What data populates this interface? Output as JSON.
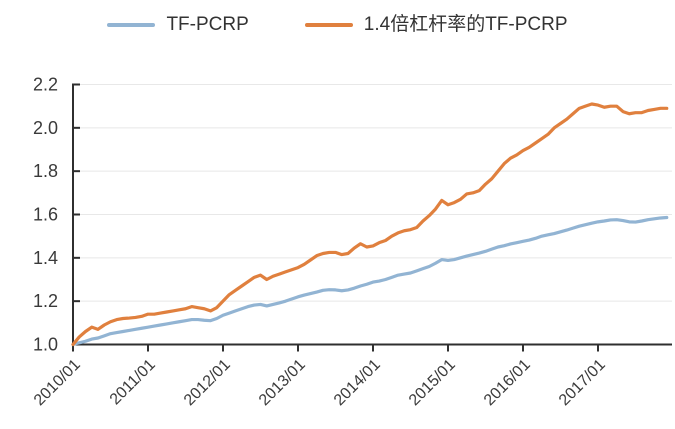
{
  "chart_data": {
    "type": "line",
    "title": "",
    "legend_position": "top-center",
    "grid": "horizontal",
    "ylim": [
      1.0,
      2.2
    ],
    "y_tick_labels": [
      "1.0",
      "1.2",
      "1.4",
      "1.6",
      "1.8",
      "2.0",
      "2.2"
    ],
    "x_tick_labels": [
      "2010/01",
      "2011/01",
      "2012/01",
      "2013/01",
      "2014/01",
      "2015/01",
      "2016/01",
      "2017/01"
    ],
    "x_start": "2010/01",
    "x_interval": "monthly",
    "x_months": 96,
    "colors": {
      "axis": "#2f2f2f",
      "grid": "#e8e8e8",
      "tick_label": "#3a3a3a"
    },
    "series": [
      {
        "name": "TF-PCRP",
        "color": "#92b4d3",
        "values": [
          1.0,
          1.008,
          1.015,
          1.025,
          1.03,
          1.04,
          1.05,
          1.055,
          1.06,
          1.065,
          1.07,
          1.075,
          1.08,
          1.085,
          1.09,
          1.095,
          1.1,
          1.105,
          1.11,
          1.115,
          1.115,
          1.112,
          1.11,
          1.12,
          1.135,
          1.145,
          1.155,
          1.165,
          1.175,
          1.182,
          1.185,
          1.178,
          1.185,
          1.192,
          1.2,
          1.21,
          1.22,
          1.228,
          1.235,
          1.242,
          1.25,
          1.253,
          1.252,
          1.248,
          1.252,
          1.26,
          1.27,
          1.278,
          1.288,
          1.293,
          1.3,
          1.31,
          1.32,
          1.325,
          1.33,
          1.34,
          1.35,
          1.36,
          1.375,
          1.392,
          1.388,
          1.392,
          1.4,
          1.408,
          1.415,
          1.422,
          1.43,
          1.44,
          1.45,
          1.456,
          1.464,
          1.47,
          1.476,
          1.482,
          1.49,
          1.5,
          1.506,
          1.512,
          1.52,
          1.528,
          1.537,
          1.546,
          1.553,
          1.56,
          1.566,
          1.57,
          1.575,
          1.576,
          1.572,
          1.566,
          1.565,
          1.57,
          1.576,
          1.58,
          1.584,
          1.586
        ]
      },
      {
        "name": "1.4倍杠杆率的TF-PCRP",
        "color": "#e0803e",
        "values": [
          1.0,
          1.035,
          1.06,
          1.08,
          1.07,
          1.09,
          1.105,
          1.115,
          1.12,
          1.122,
          1.125,
          1.13,
          1.14,
          1.14,
          1.145,
          1.15,
          1.155,
          1.16,
          1.165,
          1.175,
          1.17,
          1.165,
          1.155,
          1.17,
          1.2,
          1.23,
          1.25,
          1.27,
          1.29,
          1.31,
          1.32,
          1.3,
          1.315,
          1.325,
          1.335,
          1.345,
          1.355,
          1.37,
          1.39,
          1.41,
          1.42,
          1.425,
          1.425,
          1.415,
          1.42,
          1.445,
          1.465,
          1.45,
          1.455,
          1.47,
          1.48,
          1.5,
          1.515,
          1.525,
          1.53,
          1.54,
          1.57,
          1.595,
          1.625,
          1.665,
          1.645,
          1.655,
          1.67,
          1.695,
          1.7,
          1.71,
          1.74,
          1.765,
          1.8,
          1.835,
          1.86,
          1.875,
          1.895,
          1.91,
          1.93,
          1.95,
          1.97,
          2.0,
          2.02,
          2.04,
          2.065,
          2.09,
          2.1,
          2.11,
          2.105,
          2.095,
          2.1,
          2.1,
          2.075,
          2.065,
          2.07,
          2.07,
          2.08,
          2.085,
          2.09,
          2.09
        ]
      }
    ]
  }
}
